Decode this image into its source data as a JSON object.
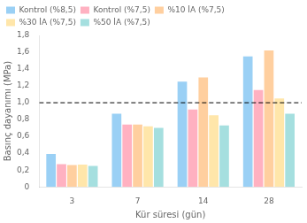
{
  "chart_data": {
    "type": "bar",
    "categories": [
      "3",
      "7",
      "14",
      "28"
    ],
    "series": [
      {
        "name": "Kontrol (%8,5)",
        "values": [
          0.39,
          0.87,
          1.25,
          1.55
        ]
      },
      {
        "name": "Kontrol (%7,5)",
        "values": [
          0.27,
          0.74,
          0.92,
          1.15
        ]
      },
      {
        "name": "%10 İA (%7,5)",
        "values": [
          0.26,
          0.74,
          1.3,
          1.62
        ]
      },
      {
        "name": "%30 İA (%7,5)",
        "values": [
          0.265,
          0.72,
          0.85,
          1.05
        ]
      },
      {
        "name": "%50 İA (%7,5)",
        "values": [
          0.25,
          0.7,
          0.73,
          0.87
        ]
      }
    ],
    "xlabel": "Kür süresi (gün)",
    "ylabel": "Basınç dayanımı (MPa)",
    "ylim": [
      0,
      1.8
    ],
    "yticks": [
      0,
      {
        "value": 0.2,
        "label": "0,2"
      },
      {
        "value": 0.4,
        "label": "0,4"
      },
      {
        "value": 0.6,
        "label": "0,6"
      },
      {
        "value": 0.8,
        "label": "0,8"
      },
      {
        "value": 1.0,
        "label": "1,0"
      },
      {
        "value": 1.2,
        "label": "1,2"
      },
      {
        "value": 1.4,
        "label": "1,4"
      },
      {
        "value": 1.6,
        "label": "1,6"
      },
      {
        "value": 1.8,
        "label": "1,8"
      }
    ],
    "reference_lines": [
      {
        "y": 1.0,
        "line_style": "dashed",
        "color": "black"
      }
    ],
    "legend": "upper left",
    "grid": false
  }
}
